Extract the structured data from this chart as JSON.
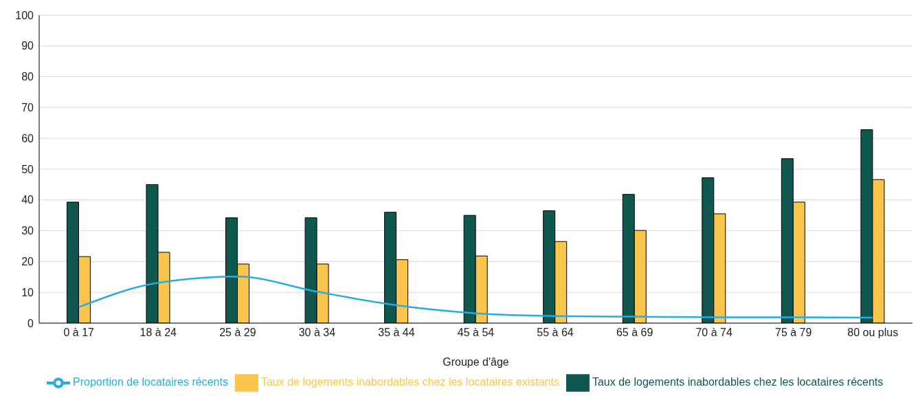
{
  "chart_data": {
    "type": "bar",
    "xlabel": "Groupe d'âge",
    "categories": [
      "0 à 17",
      "18 à 24",
      "25 à 29",
      "30 à 34",
      "35 à 44",
      "45 à 54",
      "55 à 64",
      "65 à 69",
      "70 à 74",
      "75 à 79",
      "80 ou plus"
    ],
    "series": [
      {
        "name": "Taux de logements inabordables chez les locataires récents",
        "color": "#10574f",
        "values": [
          39.3,
          45,
          34.2,
          34.2,
          36,
          35,
          36.5,
          41.8,
          47.2,
          53.4,
          62.8
        ]
      },
      {
        "name": "Taux de logements inabordables chez les locataires existants",
        "color": "#f9c54c",
        "values": [
          21.6,
          23,
          19.2,
          19.2,
          20.6,
          21.8,
          26.5,
          30.1,
          35.5,
          39.3,
          46.6
        ]
      },
      {
        "name": "Proportion de locataires récents",
        "type": "line",
        "color": "#29abe2",
        "values": [
          5.2,
          13.1,
          15.1,
          10.2,
          5.8,
          3.2,
          2.3,
          2.1,
          1.9,
          1.9,
          1.8
        ]
      }
    ],
    "ylim": [
      0,
      100
    ],
    "yticks": [
      0,
      10,
      20,
      30,
      40,
      50,
      60,
      70,
      80,
      90,
      100
    ],
    "grid": "y",
    "legend": "bottom",
    "marker": "none"
  }
}
